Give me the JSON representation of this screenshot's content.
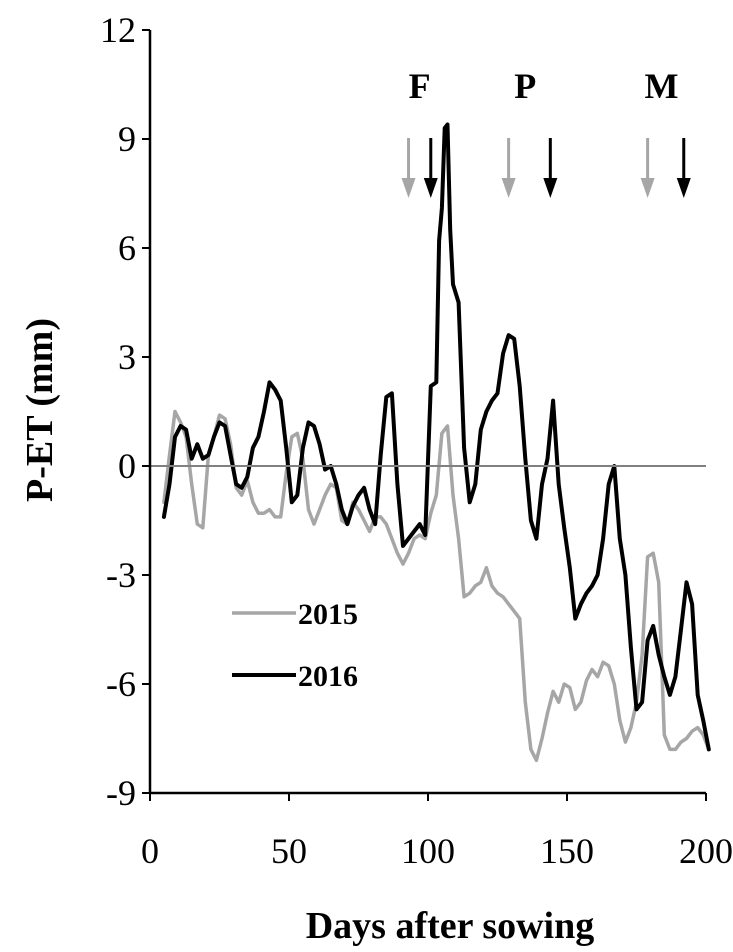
{
  "chart_data": {
    "type": "line",
    "title": "",
    "xlabel": "Days after sowing",
    "ylabel": "P-ET (mm)",
    "xlim": [
      0,
      200
    ],
    "ylim": [
      -9,
      12
    ],
    "xticks": [
      0,
      50,
      100,
      150,
      200
    ],
    "yticks": [
      -9,
      -6,
      -3,
      0,
      3,
      6,
      9,
      12
    ],
    "grid": false,
    "zero_line": true,
    "legend_position": "lower-left",
    "series": [
      {
        "name": "2015",
        "color": "#a6a6a6",
        "x": [
          5,
          7,
          9,
          11,
          13,
          15,
          17,
          19,
          21,
          23,
          25,
          27,
          29,
          31,
          33,
          35,
          37,
          39,
          41,
          43,
          45,
          47,
          49,
          51,
          53,
          55,
          57,
          59,
          61,
          63,
          65,
          67,
          69,
          71,
          73,
          75,
          77,
          79,
          81,
          83,
          85,
          87,
          89,
          91,
          93,
          95,
          97,
          99,
          101,
          103,
          105,
          107,
          109,
          111,
          113,
          115,
          117,
          119,
          121,
          123,
          125,
          127,
          129,
          131,
          133,
          135,
          137,
          139,
          141,
          143,
          145,
          147,
          149,
          151,
          153,
          155,
          157,
          159,
          161,
          163,
          165,
          167,
          169,
          171,
          173,
          175,
          177,
          179,
          181,
          183,
          185,
          187,
          189,
          191,
          193,
          195,
          197,
          199,
          201
        ],
        "y": [
          -1.0,
          0.3,
          1.5,
          1.2,
          0.8,
          -0.5,
          -1.6,
          -1.7,
          0.3,
          0.8,
          1.4,
          1.3,
          0.6,
          -0.6,
          -0.8,
          -0.4,
          -1.0,
          -1.3,
          -1.3,
          -1.2,
          -1.4,
          -1.4,
          -0.2,
          0.8,
          0.9,
          0.2,
          -1.2,
          -1.6,
          -1.2,
          -0.8,
          -0.5,
          -0.6,
          -1.5,
          -1.6,
          -1.0,
          -1.2,
          -1.5,
          -1.8,
          -1.4,
          -1.4,
          -1.6,
          -2.0,
          -2.4,
          -2.7,
          -2.4,
          -2.0,
          -1.9,
          -2.0,
          -1.3,
          -0.8,
          0.9,
          1.1,
          -0.8,
          -2.0,
          -3.6,
          -3.5,
          -3.3,
          -3.2,
          -2.8,
          -3.3,
          -3.5,
          -3.6,
          -3.8,
          -4.0,
          -4.2,
          -6.5,
          -7.8,
          -8.1,
          -7.5,
          -6.8,
          -6.2,
          -6.5,
          -6.0,
          -6.1,
          -6.7,
          -6.5,
          -5.9,
          -5.6,
          -5.8,
          -5.4,
          -5.5,
          -6.0,
          -7.0,
          -7.6,
          -7.2,
          -6.5,
          -5.2,
          -2.5,
          -2.4,
          -3.2,
          -7.4,
          -7.8,
          -7.8,
          -7.6,
          -7.5,
          -7.3,
          -7.2,
          -7.4,
          -7.8
        ]
      },
      {
        "name": "2016",
        "color": "#000000",
        "x": [
          5,
          7,
          9,
          11,
          13,
          15,
          17,
          19,
          21,
          23,
          25,
          27,
          29,
          31,
          33,
          35,
          37,
          39,
          41,
          43,
          45,
          47,
          49,
          51,
          53,
          55,
          57,
          59,
          61,
          63,
          65,
          67,
          69,
          71,
          73,
          75,
          77,
          79,
          81,
          83,
          85,
          87,
          89,
          91,
          93,
          95,
          97,
          99,
          101,
          103,
          104,
          105,
          106,
          107,
          108,
          109,
          111,
          113,
          115,
          117,
          119,
          121,
          123,
          125,
          127,
          129,
          131,
          133,
          135,
          137,
          139,
          141,
          143,
          145,
          147,
          149,
          151,
          153,
          155,
          157,
          159,
          161,
          163,
          165,
          167,
          169,
          171,
          173,
          175,
          177,
          179,
          181,
          183,
          185,
          187,
          189,
          191,
          193,
          195,
          197,
          199,
          201
        ],
        "y": [
          -1.4,
          -0.5,
          0.8,
          1.1,
          1.0,
          0.2,
          0.6,
          0.2,
          0.3,
          0.8,
          1.2,
          1.1,
          0.3,
          -0.5,
          -0.6,
          -0.3,
          0.5,
          0.8,
          1.5,
          2.3,
          2.1,
          1.8,
          0.5,
          -1.0,
          -0.8,
          0.5,
          1.2,
          1.1,
          0.6,
          -0.1,
          0.0,
          -0.5,
          -1.2,
          -1.6,
          -1.1,
          -0.8,
          -0.6,
          -1.2,
          -1.6,
          0.3,
          1.9,
          2.0,
          -0.5,
          -2.2,
          -2.0,
          -1.8,
          -1.6,
          -1.9,
          2.2,
          2.3,
          6.2,
          7.1,
          9.3,
          9.4,
          6.5,
          5.0,
          4.5,
          0.5,
          -1.0,
          -0.5,
          1.0,
          1.5,
          1.8,
          2.0,
          3.1,
          3.6,
          3.5,
          2.2,
          0.2,
          -1.5,
          -2.0,
          -0.5,
          0.2,
          1.8,
          -0.5,
          -1.7,
          -2.8,
          -4.2,
          -3.8,
          -3.5,
          -3.3,
          -3.0,
          -2.0,
          -0.5,
          0.0,
          -2.0,
          -3.0,
          -5.0,
          -6.7,
          -6.5,
          -4.8,
          -4.4,
          -5.2,
          -5.8,
          -6.3,
          -5.8,
          -4.5,
          -3.2,
          -3.8,
          -6.3,
          -7.0,
          -7.8
        ]
      }
    ],
    "annotations": [
      {
        "label": "F",
        "x": 97
      },
      {
        "label": "P",
        "x": 135
      },
      {
        "label": "M",
        "x": 184
      }
    ],
    "arrows": [
      {
        "x": 93,
        "color": "#a6a6a6"
      },
      {
        "x": 101,
        "color": "#000000"
      },
      {
        "x": 129,
        "color": "#a6a6a6"
      },
      {
        "x": 144,
        "color": "#000000"
      },
      {
        "x": 179,
        "color": "#a6a6a6"
      },
      {
        "x": 192,
        "color": "#000000"
      }
    ]
  }
}
